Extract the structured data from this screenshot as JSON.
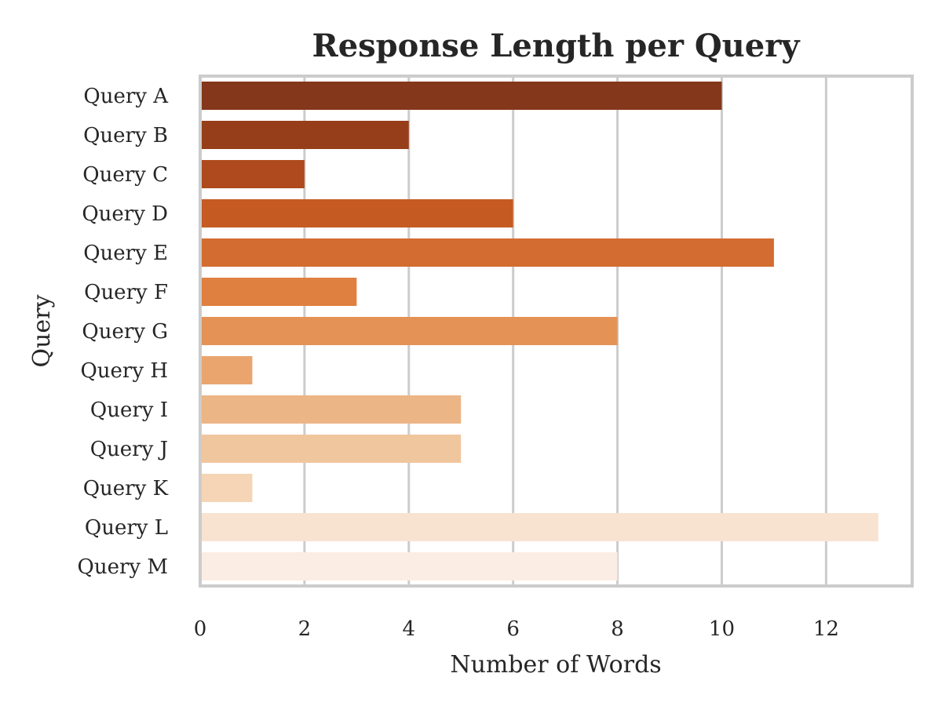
{
  "chart_data": {
    "type": "bar",
    "orientation": "horizontal",
    "title": "Response Length per Query",
    "xlabel": "Number of Words",
    "ylabel": "Query",
    "categories": [
      "Query A",
      "Query B",
      "Query C",
      "Query D",
      "Query E",
      "Query F",
      "Query G",
      "Query H",
      "Query I",
      "Query J",
      "Query K",
      "Query L",
      "Query M"
    ],
    "values": [
      10,
      4,
      2,
      6,
      11,
      3,
      8,
      1,
      5,
      5,
      1,
      13,
      8
    ],
    "colors": [
      "#84371a",
      "#963e1a",
      "#ae4a1e",
      "#c55a22",
      "#d36c30",
      "#df8040",
      "#e59257",
      "#eaa56e",
      "#ecb586",
      "#f0c69e",
      "#f5d5b5",
      "#f8e3d1",
      "#fbede3"
    ],
    "xlim": [
      0,
      13.65
    ],
    "xticks": [
      0,
      2,
      4,
      6,
      8,
      10,
      12
    ],
    "grid": true
  }
}
